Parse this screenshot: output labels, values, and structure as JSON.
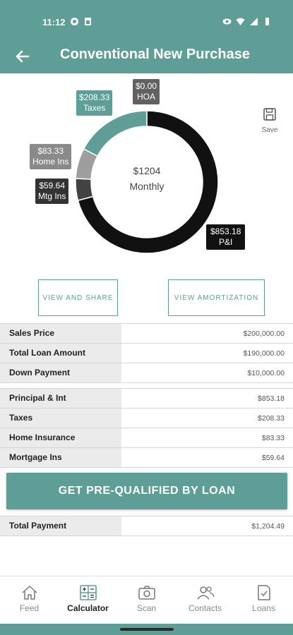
{
  "status_bar": {
    "time": "11:12"
  },
  "app_bar": {
    "title": "Conventional New Purchase"
  },
  "chart_data": {
    "type": "pie",
    "center_amount": "$1204",
    "center_label": "Monthly",
    "slices": [
      {
        "label": "P&I",
        "value": 853.18,
        "display": "$853.18",
        "color": "#111111"
      },
      {
        "label": "Mtg Ins",
        "value": 59.64,
        "display": "$59.64",
        "color": "#424242"
      },
      {
        "label": "Home Ins",
        "value": 83.33,
        "display": "$83.33",
        "color": "#9e9e9e"
      },
      {
        "label": "Taxes",
        "value": 208.33,
        "display": "$208.33",
        "color": "#5e9e97"
      },
      {
        "label": "HOA",
        "value": 0.0,
        "display": "$0.00",
        "color": "#616161"
      }
    ]
  },
  "save": {
    "label": "Save"
  },
  "buttons": {
    "view_share": "VIEW AND SHARE",
    "view_amort": "VIEW AMORTIZATION",
    "prequal": "GET PRE-QUALIFIED BY LOAN"
  },
  "loan_table": [
    {
      "label": "Sales Price",
      "value": "$200,000.00"
    },
    {
      "label": "Total Loan Amount",
      "value": "$190,000.00"
    },
    {
      "label": "Down Payment",
      "value": "$10,000.00"
    }
  ],
  "payment_table": [
    {
      "label": "Principal & Int",
      "value": "$853.18"
    },
    {
      "label": "Taxes",
      "value": "$208.33"
    },
    {
      "label": "Home Insurance",
      "value": "$83.33"
    },
    {
      "label": "Mortgage Ins",
      "value": "$59.64"
    }
  ],
  "total": {
    "label": "Total Payment",
    "value": "$1,204.49"
  },
  "nav": [
    {
      "label": "Feed",
      "icon": "home-icon",
      "active": false
    },
    {
      "label": "Calculator",
      "icon": "calculator-icon",
      "active": true
    },
    {
      "label": "Scan",
      "icon": "camera-icon",
      "active": false
    },
    {
      "label": "Contacts",
      "icon": "contacts-icon",
      "active": false
    },
    {
      "label": "Loans",
      "icon": "document-check-icon",
      "active": false
    }
  ]
}
